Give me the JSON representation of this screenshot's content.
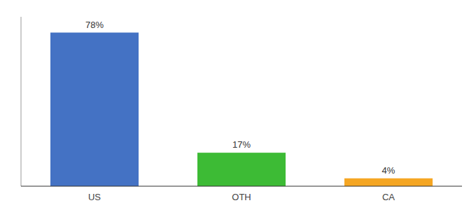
{
  "chart_data": {
    "type": "bar",
    "categories": [
      "US",
      "OTH",
      "CA"
    ],
    "values": [
      78,
      17,
      4
    ],
    "value_labels": [
      "78%",
      "17%",
      "4%"
    ],
    "colors": [
      "#4472c4",
      "#3dbb35",
      "#f5a623"
    ],
    "ylim": [
      0,
      86
    ],
    "grid": false,
    "data_labels": true,
    "tick_labels": "x"
  }
}
